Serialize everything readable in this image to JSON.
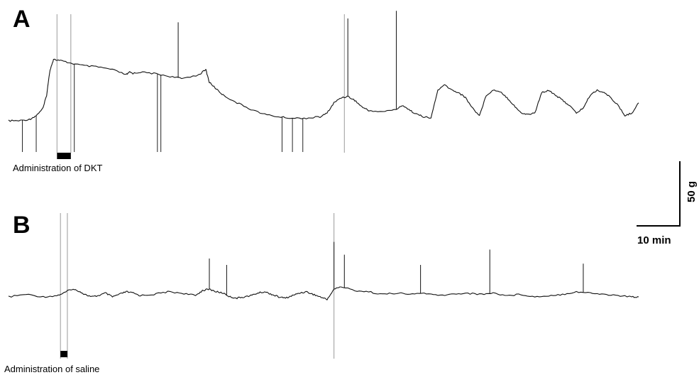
{
  "chart_data": [
    {
      "type": "line",
      "panel_label": "A",
      "annotation": "Administration of DKT",
      "trace": {
        "x": [
          0,
          3,
          6,
          8,
          10,
          11,
          12,
          13,
          15,
          18,
          22,
          26,
          30,
          34,
          35,
          36,
          38,
          42,
          46,
          50,
          55,
          57,
          58,
          60,
          62,
          66,
          70,
          74,
          78,
          82,
          86,
          90,
          92,
          94,
          96,
          98,
          100,
          102,
          104,
          108,
          112,
          114,
          116,
          118,
          120,
          122,
          124,
          126,
          128,
          130,
          132,
          134,
          136,
          138,
          140,
          142,
          144,
          146,
          148,
          150,
          152,
          154,
          156,
          158,
          160,
          162,
          164,
          166,
          168,
          170,
          172,
          174,
          176,
          178,
          180,
          182
        ],
        "y": [
          0,
          0,
          1,
          4,
          10,
          20,
          40,
          48,
          47,
          45,
          43,
          42,
          40,
          36,
          38,
          37,
          38,
          37,
          35,
          33,
          36,
          40,
          30,
          25,
          20,
          14,
          9,
          5,
          3,
          2,
          2,
          3,
          6,
          14,
          18,
          19,
          16,
          11,
          8,
          7,
          9,
          12,
          8,
          5,
          3,
          2,
          24,
          28,
          24,
          22,
          18,
          10,
          4,
          20,
          24,
          23,
          18,
          12,
          6,
          5,
          6,
          22,
          24,
          20,
          16,
          12,
          6,
          10,
          20,
          24,
          22,
          18,
          12,
          4,
          6,
          14
        ]
      },
      "spikes": [
        {
          "x": 49,
          "peak": 77
        },
        {
          "x": 98,
          "peak": 80
        },
        {
          "x": 112,
          "peak": 86
        }
      ],
      "downward_artifacts": [
        4,
        8,
        19,
        43,
        44,
        79,
        82,
        85
      ],
      "event_markers": [
        14,
        18,
        97
      ],
      "treatment_window": [
        14,
        18
      ]
    },
    {
      "type": "line",
      "panel_label": "B",
      "annotation": "Administration of saline",
      "trace": {
        "x": [
          0,
          5,
          10,
          14,
          16,
          18,
          20,
          22,
          24,
          26,
          28,
          30,
          32,
          34,
          36,
          38,
          42,
          46,
          50,
          54,
          56,
          58,
          60,
          62,
          64,
          66,
          68,
          70,
          72,
          74,
          76,
          78,
          80,
          82,
          84,
          86,
          88,
          90,
          92,
          94,
          96,
          100,
          104,
          108,
          112,
          116,
          120,
          124,
          128,
          132,
          136,
          140,
          144,
          148,
          152,
          156,
          160,
          164,
          168,
          172,
          176,
          180,
          182
        ],
        "y": [
          0,
          2,
          0,
          1,
          3,
          6,
          5,
          2,
          0,
          1,
          3,
          0,
          2,
          4,
          3,
          1,
          2,
          4,
          3,
          1,
          5,
          6,
          4,
          3,
          0,
          -1,
          0,
          1,
          3,
          4,
          2,
          0,
          -1,
          1,
          3,
          4,
          2,
          0,
          -2,
          6,
          8,
          5,
          4,
          2,
          3,
          2,
          3,
          1,
          2,
          3,
          2,
          3,
          1,
          2,
          0,
          1,
          2,
          4,
          3,
          2,
          1,
          0,
          0
        ]
      },
      "spikes": [
        {
          "x": 58,
          "peak": 30
        },
        {
          "x": 63,
          "peak": 25
        },
        {
          "x": 94,
          "peak": 43
        },
        {
          "x": 97,
          "peak": 33
        },
        {
          "x": 119,
          "peak": 25
        },
        {
          "x": 139,
          "peak": 37
        },
        {
          "x": 166,
          "peak": 26
        }
      ],
      "downward_artifacts": [],
      "event_markers": [
        15,
        17,
        94
      ],
      "treatment_window": [
        15,
        17
      ]
    }
  ],
  "scale_bar": {
    "vertical_label": "50 g",
    "horizontal_label": "10 min"
  }
}
